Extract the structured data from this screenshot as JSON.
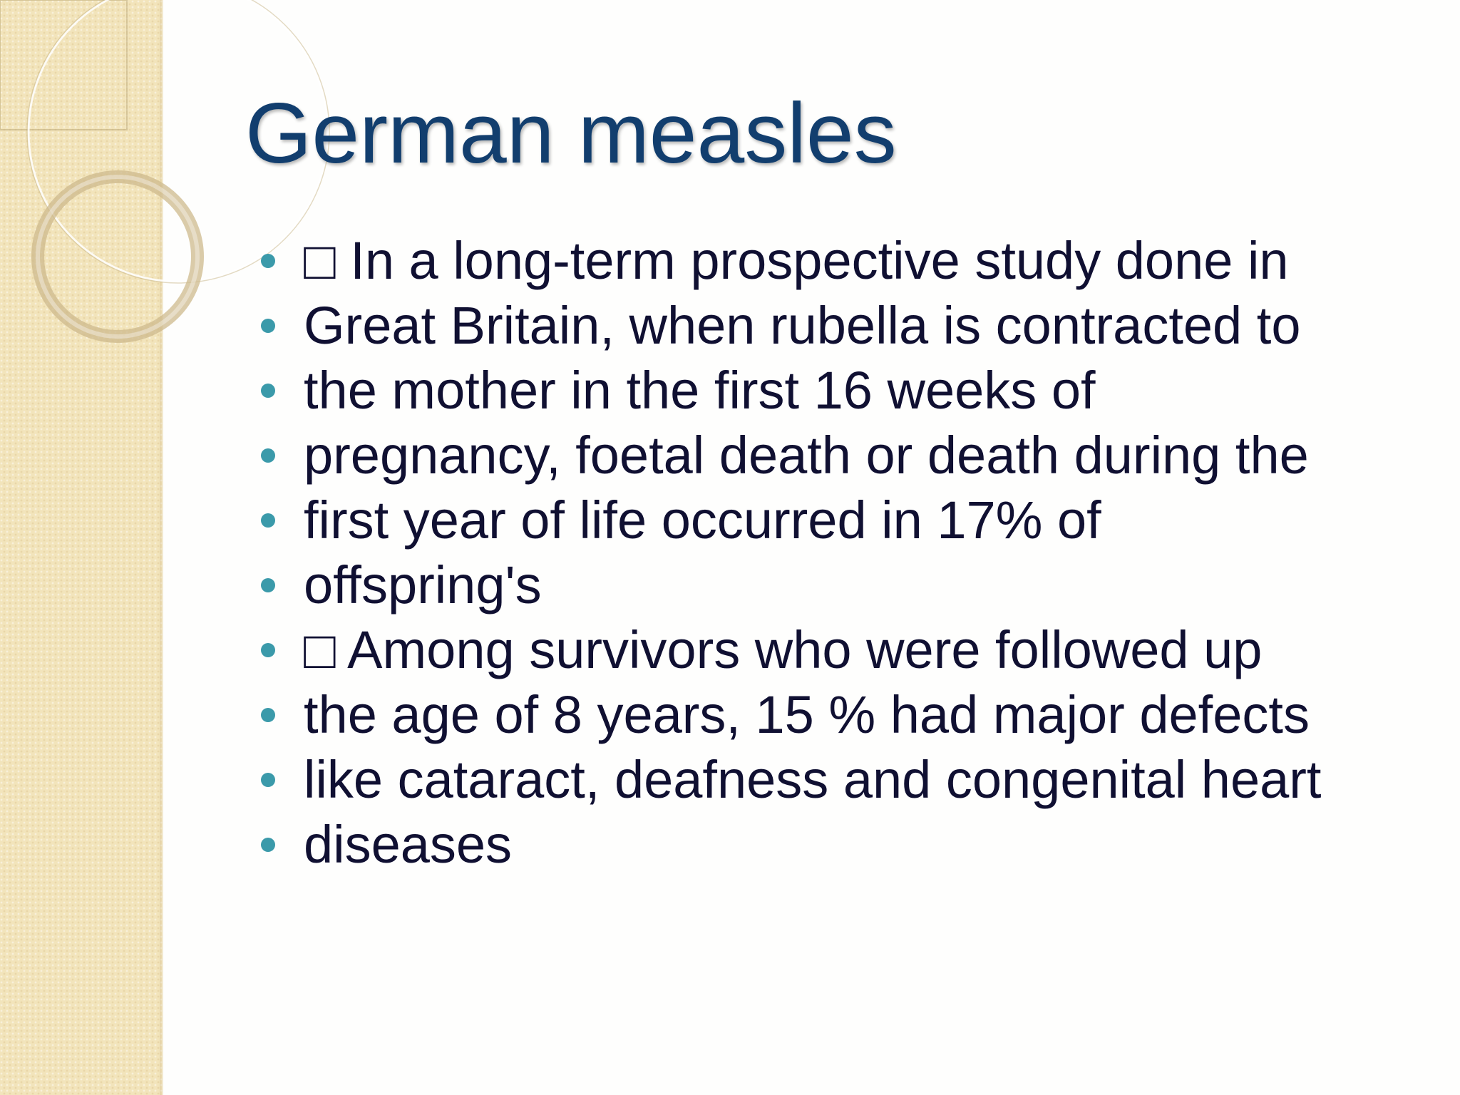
{
  "slide": {
    "title": "German measles",
    "bullets": [
      "□ In a long-term prospective study done in",
      "Great Britain, when rubella is contracted to",
      "the mother in the first 16 weeks of",
      "pregnancy, foetal death or death during the",
      "first year of life occurred in 17% of",
      "offspring's",
      "□ Among survivors who were followed up",
      "the age of 8 years, 15 % had major defects",
      "like cataract, deafness and congenital heart",
      "diseases"
    ]
  },
  "theme": {
    "title_color": "#123e6e",
    "text_color": "#101032",
    "bullet_color": "#3b9aaa",
    "band_color": "#f2e4bb"
  }
}
